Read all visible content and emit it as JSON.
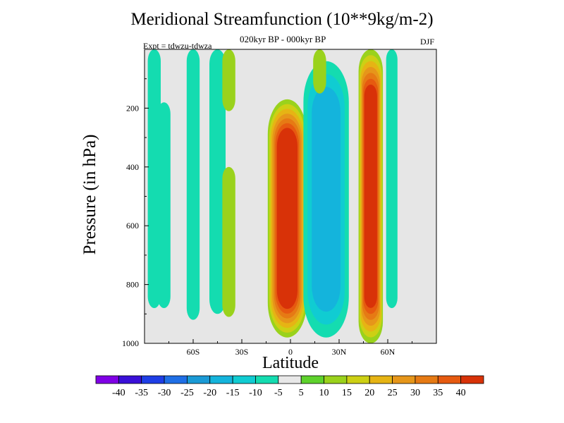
{
  "chart_data": {
    "type": "heatmap",
    "title": "Meridional Streamfunction (10**9kg/m-2)",
    "subtitle": "020kyr BP - 000kyr BP",
    "season": "DJF",
    "expt": "Expt = tdwzu-tdwza",
    "xlabel": "Latitude",
    "ylabel": "Pressure (in hPa)",
    "xlim": [
      -90,
      90
    ],
    "ylim": [
      1000,
      0
    ],
    "x_ticks": [
      {
        "value": -60,
        "label": "60S"
      },
      {
        "value": -30,
        "label": "30S"
      },
      {
        "value": 0,
        "label": "0"
      },
      {
        "value": 30,
        "label": "30N"
      },
      {
        "value": 60,
        "label": "60N"
      }
    ],
    "y_ticks": [
      {
        "value": 200,
        "label": "200"
      },
      {
        "value": 400,
        "label": "400"
      },
      {
        "value": 600,
        "label": "600"
      },
      {
        "value": 800,
        "label": "800"
      },
      {
        "value": 1000,
        "label": "1000"
      }
    ],
    "background_color": "#e6e6e6",
    "colorbar": {
      "labels": [
        "-40",
        "-35",
        "-30",
        "-25",
        "-20",
        "-15",
        "-10",
        "-5",
        "5",
        "10",
        "15",
        "20",
        "25",
        "30",
        "35",
        "40"
      ],
      "colors": [
        "#8000e6",
        "#3a10d8",
        "#1e3ee6",
        "#1f6fe6",
        "#1a9ad6",
        "#14b4dc",
        "#10ccd2",
        "#14dcb0",
        "#e8e8e8",
        "#5ed22c",
        "#9ad21c",
        "#cdd014",
        "#e6b414",
        "#e6961a",
        "#e67a14",
        "#e65a10",
        "#d83208"
      ]
    },
    "features": [
      {
        "kind": "cell",
        "sign": "positive",
        "value": 40,
        "lat_range": [
          -14,
          10
        ],
        "p_range": [
          170,
          980
        ],
        "core_level": "40"
      },
      {
        "kind": "cell",
        "sign": "positive",
        "value": 40,
        "lat_range": [
          42,
          57
        ],
        "p_range": [
          0,
          1000
        ],
        "core_level": "40"
      },
      {
        "kind": "cell",
        "sign": "negative",
        "value": -20,
        "lat_range": [
          8,
          36
        ],
        "p_range": [
          40,
          980
        ],
        "core_level": "-20"
      },
      {
        "kind": "band",
        "sign": "negative",
        "value": -10,
        "lat_range": [
          -88,
          -80
        ],
        "p_range": [
          0,
          880
        ],
        "core_level": "-10"
      },
      {
        "kind": "band",
        "sign": "negative",
        "value": -10,
        "lat_range": [
          -64,
          -56
        ],
        "p_range": [
          0,
          920
        ],
        "core_level": "-10"
      },
      {
        "kind": "band",
        "sign": "negative",
        "value": -10,
        "lat_range": [
          -82,
          -74
        ],
        "p_range": [
          180,
          880
        ],
        "core_level": "-10"
      },
      {
        "kind": "band",
        "sign": "negative",
        "value": -10,
        "lat_range": [
          -50,
          -40
        ],
        "p_range": [
          0,
          900
        ],
        "core_level": "-10"
      },
      {
        "kind": "band",
        "sign": "positive",
        "value": 10,
        "lat_range": [
          -42,
          -34
        ],
        "p_range": [
          0,
          210
        ],
        "core_level": "10"
      },
      {
        "kind": "band",
        "sign": "positive",
        "value": 10,
        "lat_range": [
          -42,
          -34
        ],
        "p_range": [
          400,
          910
        ],
        "core_level": "10"
      },
      {
        "kind": "band",
        "sign": "positive",
        "value": 10,
        "lat_range": [
          14,
          22
        ],
        "p_range": [
          0,
          150
        ],
        "core_level": "10"
      },
      {
        "kind": "band",
        "sign": "negative",
        "value": -10,
        "lat_range": [
          59,
          66
        ],
        "p_range": [
          0,
          880
        ],
        "core_level": "-10"
      }
    ]
  }
}
